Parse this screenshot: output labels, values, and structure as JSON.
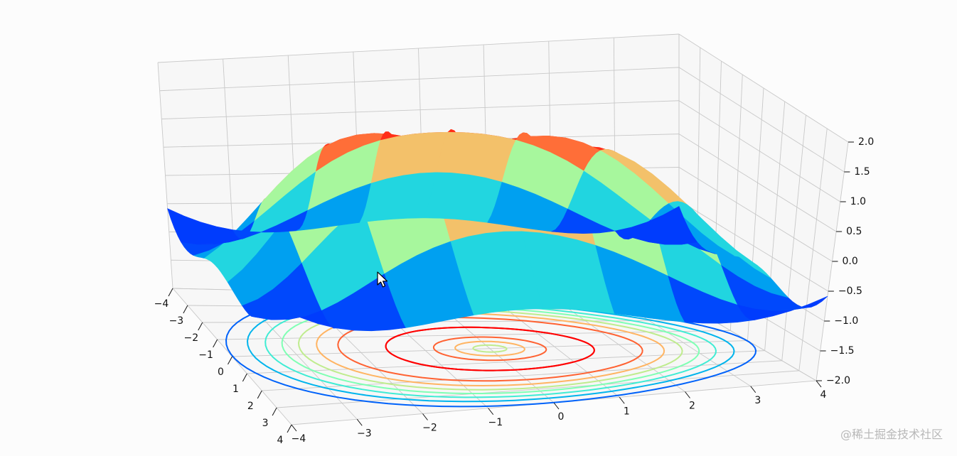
{
  "chart_data": {
    "type": "surface3d",
    "function": "z = sin(sqrt(x^2 + y^2))",
    "colormap": "rainbow",
    "title": "",
    "xlabel": "",
    "ylabel": "",
    "zlabel": "",
    "x_ticks": [
      "−4",
      "−3",
      "−2",
      "−1",
      "0",
      "1",
      "2",
      "3",
      "4"
    ],
    "y_ticks": [
      "−4",
      "−3",
      "−2",
      "−1",
      "0",
      "1",
      "2",
      "3",
      "4"
    ],
    "z_ticks": [
      "−2.0",
      "−1.5",
      "−1.0",
      "−0.5",
      "0.0",
      "0.5",
      "1.0",
      "1.5",
      "2.0"
    ],
    "xlim": [
      -4,
      4
    ],
    "ylim": [
      -4,
      4
    ],
    "zlim": [
      -2,
      2
    ],
    "surface": {
      "x": [
        -4,
        -3,
        -2,
        -1,
        0,
        1,
        2,
        3,
        4
      ],
      "y": [
        -4,
        -3,
        -2,
        -1,
        0,
        1,
        2,
        3,
        4
      ],
      "grid_step": 1
    },
    "contour": {
      "offset_z": -2,
      "levels": [
        -0.75,
        -0.5,
        -0.25,
        0,
        0.25,
        0.5,
        0.75,
        1.0
      ]
    },
    "grid": true
  },
  "cursor": {
    "name": "mouse-pointer"
  },
  "watermark": "@稀土掘金技术社区"
}
